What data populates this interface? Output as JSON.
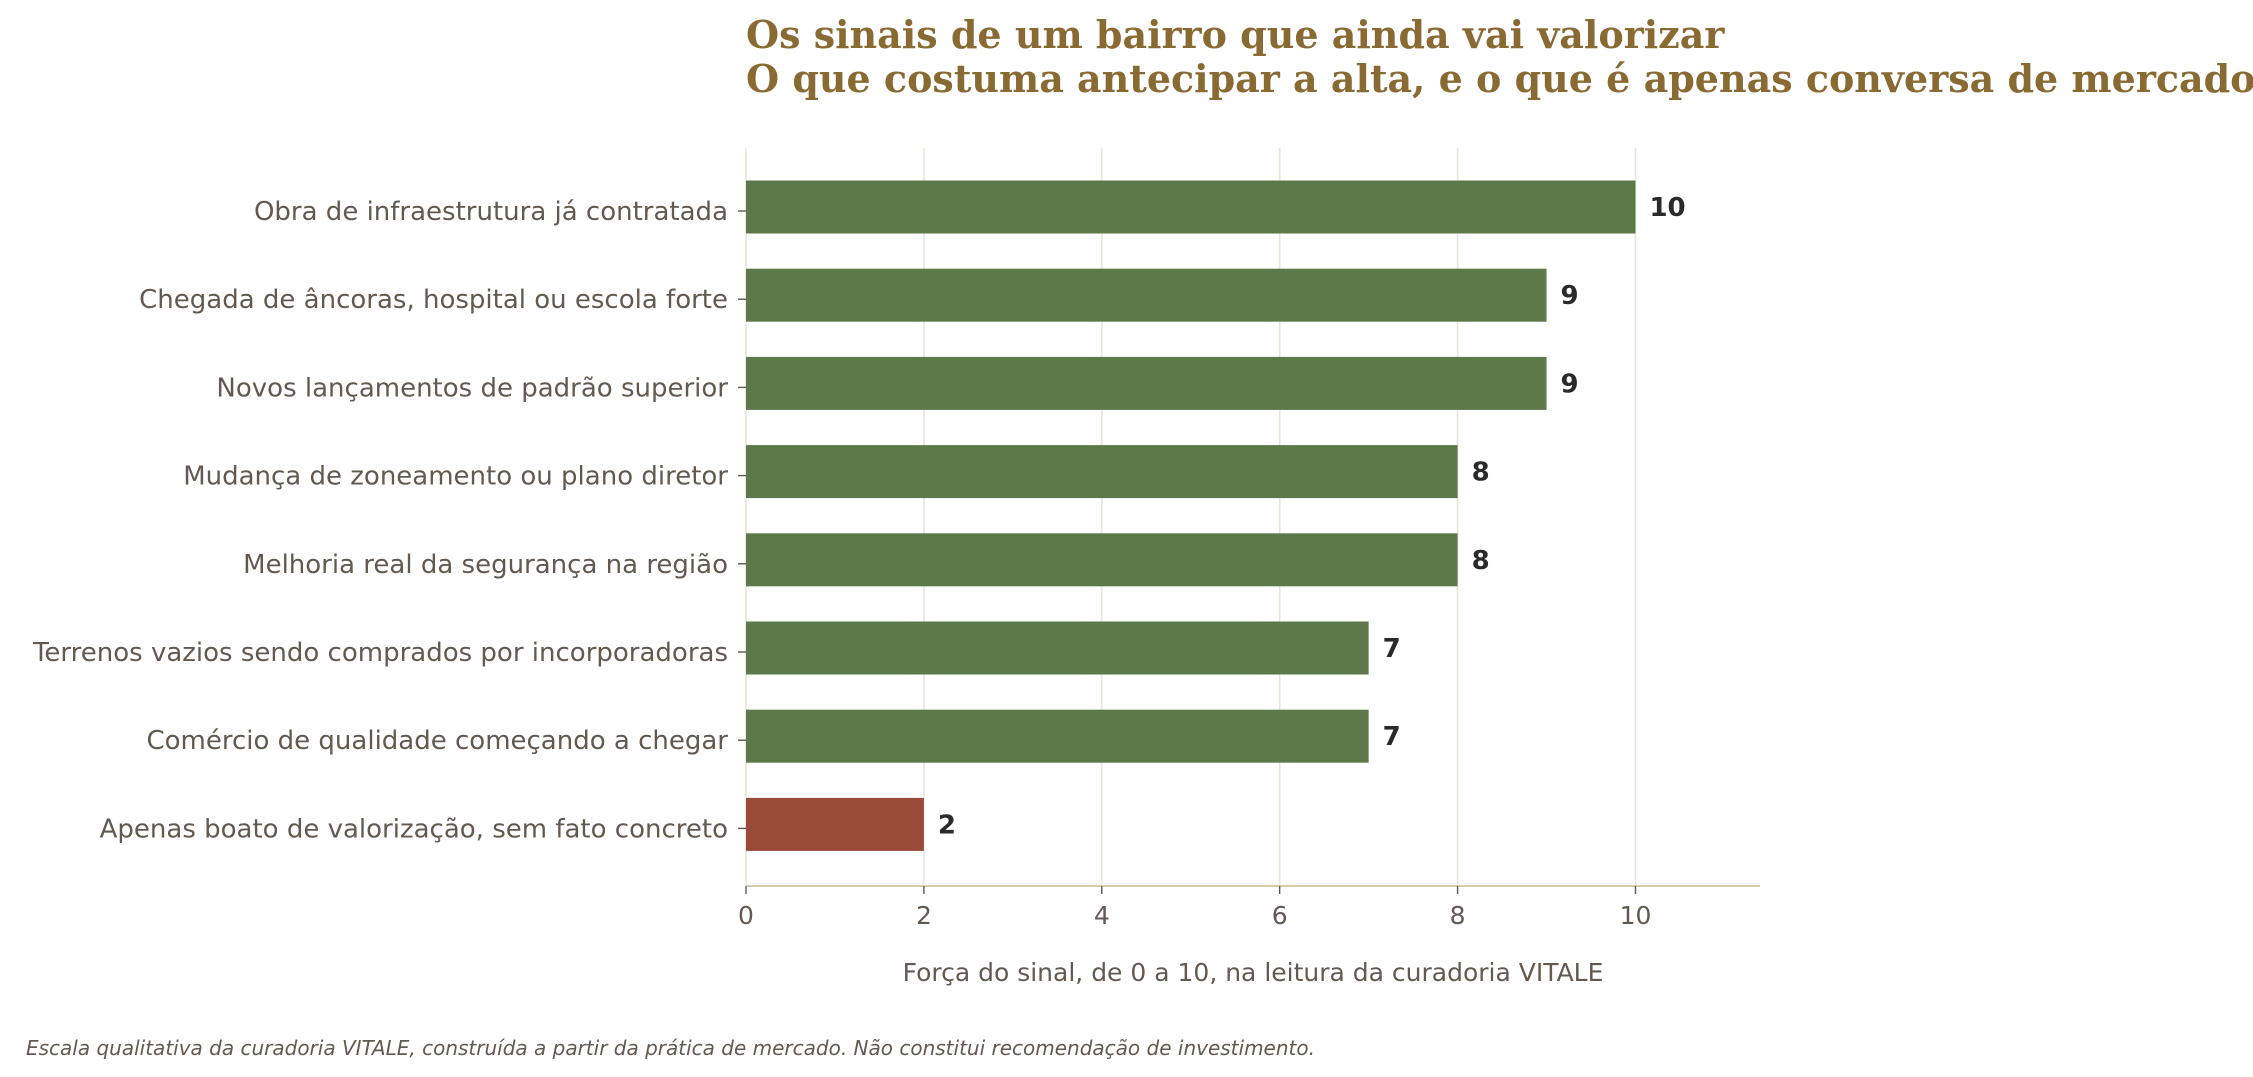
{
  "colors": {
    "title": "#8a6a33",
    "positive_bar": "#5c7a49",
    "negative_bar": "#9a4a39",
    "grid": "#ece5d3",
    "axis": "#d8cba8",
    "label": "#625a50",
    "value": "#2a2a2a"
  },
  "footnote": "Escala qualitativa da curadoria VITALE, construída a partir da prática de mercado. Não constitui recomendação de investimento.",
  "chart_data": {
    "type": "bar",
    "orientation": "horizontal",
    "title": "Os sinais de um bairro que ainda vai valorizar",
    "subtitle": "O que costuma antecipar a alta, e o que é apenas conversa de mercado",
    "xlabel": "Força do sinal, de 0 a 10, na leitura da curadoria VITALE",
    "ylabel": "",
    "xlim": [
      0,
      11.4
    ],
    "xticks": [
      0,
      2,
      4,
      6,
      8,
      10
    ],
    "grid": true,
    "legend": "none",
    "categories": [
      "Obra de infraestrutura já contratada",
      "Chegada de âncoras, hospital ou escola forte",
      "Novos lançamentos de padrão superior",
      "Mudança de zoneamento ou plano diretor",
      "Melhoria real da segurança na região",
      "Terrenos vazios sendo comprados por incorporadoras",
      "Comércio de qualidade começando a chegar",
      "Apenas boato de valorização, sem fato concreto"
    ],
    "values": [
      10,
      9,
      9,
      8,
      8,
      7,
      7,
      2
    ],
    "bar_colors": [
      "#5c7a49",
      "#5c7a49",
      "#5c7a49",
      "#5c7a49",
      "#5c7a49",
      "#5c7a49",
      "#5c7a49",
      "#9a4a39"
    ]
  }
}
